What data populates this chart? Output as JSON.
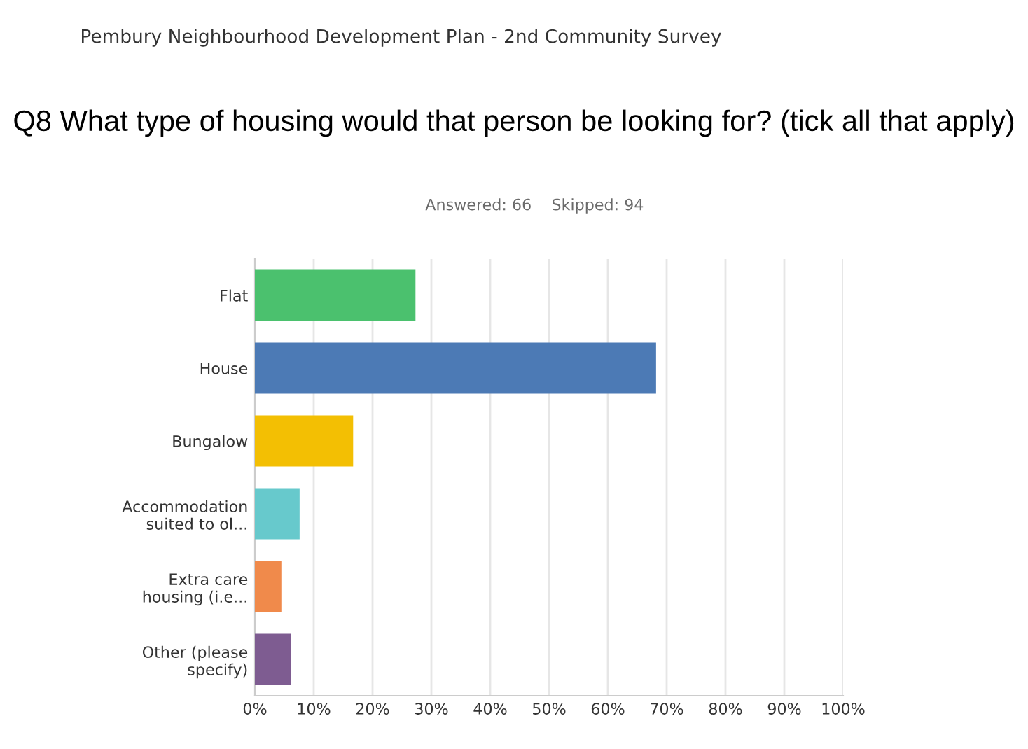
{
  "chart_data": {
    "type": "bar",
    "orientation": "horizontal",
    "title": "Q8 What type of housing would that person be looking for? (tick all that apply)",
    "subtitle": "Answered: 66    Skipped: 94",
    "annotations": [
      "Pembury Neighbourhood Development Plan - 2nd Community Survey"
    ],
    "categories": [
      "Flat",
      "House",
      "Bungalow",
      "Accommodation\nsuited to ol...",
      "Extra care\nhousing (i.e...",
      "Other (please\nspecify)"
    ],
    "values": [
      27.3,
      68.2,
      16.7,
      7.6,
      4.5,
      6.1
    ],
    "colors": [
      "#4bc16e",
      "#4c7ab5",
      "#f3bf03",
      "#67c9cc",
      "#f08a4b",
      "#7e5c91"
    ],
    "xlim": [
      0,
      100
    ],
    "xticks": [
      {
        "value": 0,
        "label": "0%"
      },
      {
        "value": 10,
        "label": "10%"
      },
      {
        "value": 20,
        "label": "20%"
      },
      {
        "value": 30,
        "label": "30%"
      },
      {
        "value": 40,
        "label": "40%"
      },
      {
        "value": 50,
        "label": "50%"
      },
      {
        "value": 60,
        "label": "60%"
      },
      {
        "value": 70,
        "label": "70%"
      },
      {
        "value": 80,
        "label": "80%"
      },
      {
        "value": 90,
        "label": "90%"
      },
      {
        "value": 100,
        "label": "100%"
      }
    ],
    "grid": "x"
  }
}
